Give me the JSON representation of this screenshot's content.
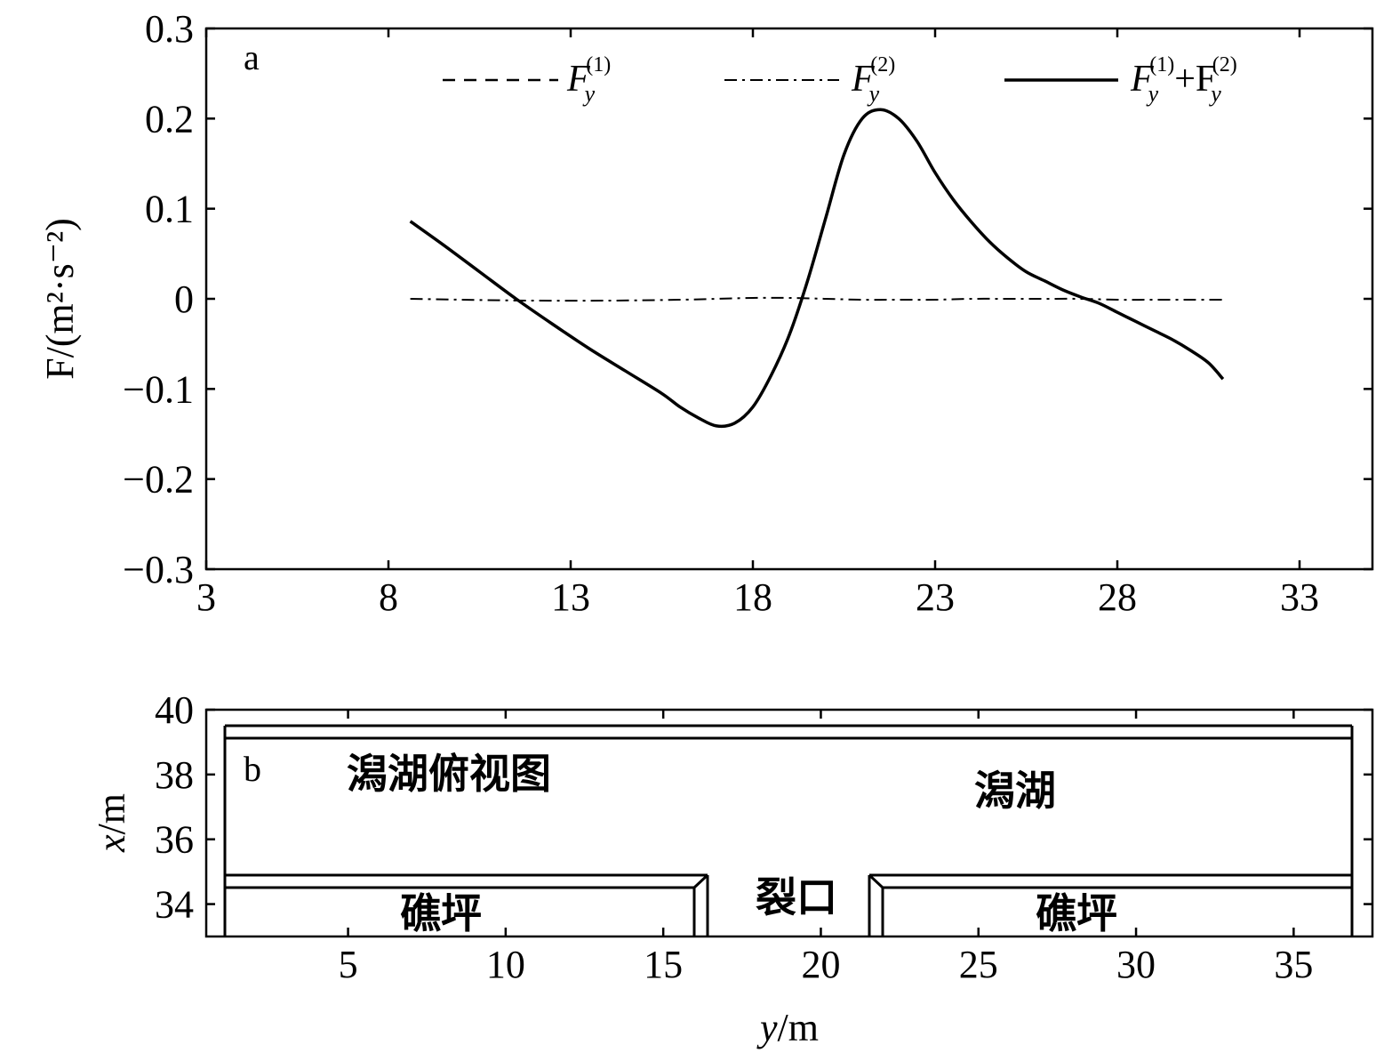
{
  "chart_data": [
    {
      "type": "line",
      "panel_label": "a",
      "title": "",
      "xlabel": "",
      "ylabel": "F/(m²·s⁻²)",
      "xlim": [
        3,
        35
      ],
      "ylim": [
        -0.3,
        0.3
      ],
      "xticks": [
        3,
        8,
        13,
        18,
        23,
        28,
        33
      ],
      "yticks": [
        0.3,
        0.2,
        0.1,
        0,
        -0.1,
        -0.2,
        -0.3
      ],
      "ytick_labels": [
        "0.3",
        "0.2",
        "0.1",
        "0",
        "−0.1",
        "−0.2",
        "−0.3"
      ],
      "legend_position": "top",
      "series": [
        {
          "name": "Fy(1)",
          "style": "dashed",
          "x": [],
          "y": []
        },
        {
          "name": "Fy(2)",
          "style": "dashdot",
          "x": [
            8.6,
            10,
            12,
            14,
            16,
            17,
            18,
            19,
            20,
            21,
            22,
            23,
            24,
            25,
            26,
            27,
            28,
            29,
            30,
            30.9
          ],
          "y": [
            0.0,
            -0.001,
            -0.002,
            -0.002,
            -0.001,
            0.0,
            0.001,
            0.001,
            0.0,
            -0.001,
            -0.001,
            -0.001,
            0.0,
            0.0,
            0.0,
            0.0,
            -0.001,
            -0.001,
            -0.001,
            -0.001
          ]
        },
        {
          "name": "Fy(1)+Fy(2)",
          "style": "solid",
          "x": [
            8.6,
            9.5,
            10.5,
            11.5,
            12.5,
            13.5,
            14.5,
            15.5,
            16.0,
            16.5,
            17.0,
            17.5,
            18.0,
            18.5,
            19.0,
            19.5,
            20.0,
            20.5,
            21.0,
            21.5,
            22.0,
            22.5,
            23.0,
            23.5,
            24.0,
            24.5,
            25.0,
            25.5,
            26.0,
            26.5,
            27.0,
            27.5,
            28.0,
            28.5,
            29.0,
            29.5,
            30.0,
            30.5,
            30.9
          ],
          "y": [
            0.086,
            0.06,
            0.03,
            0.0,
            -0.028,
            -0.055,
            -0.08,
            -0.105,
            -0.12,
            -0.132,
            -0.141,
            -0.138,
            -0.12,
            -0.085,
            -0.04,
            0.02,
            0.09,
            0.16,
            0.2,
            0.21,
            0.2,
            0.175,
            0.14,
            0.11,
            0.085,
            0.063,
            0.045,
            0.03,
            0.02,
            0.01,
            0.002,
            -0.005,
            -0.015,
            -0.025,
            -0.035,
            -0.045,
            -0.057,
            -0.071,
            -0.089
          ]
        }
      ]
    },
    {
      "type": "diagram",
      "panel_label": "b",
      "xlabel": "y/m",
      "ylabel": "x/m",
      "xlim": [
        0.5,
        37.5
      ],
      "ylim": [
        33,
        40
      ],
      "xticks": [
        5,
        10,
        15,
        20,
        25,
        30,
        35
      ],
      "yticks": [
        40,
        38,
        36,
        34
      ],
      "labels": {
        "view_title": "潟湖俯视图",
        "lagoon": "潟湖",
        "gap": "裂口",
        "reef_left": "礁坪",
        "reef_right": "礁坪"
      }
    }
  ]
}
